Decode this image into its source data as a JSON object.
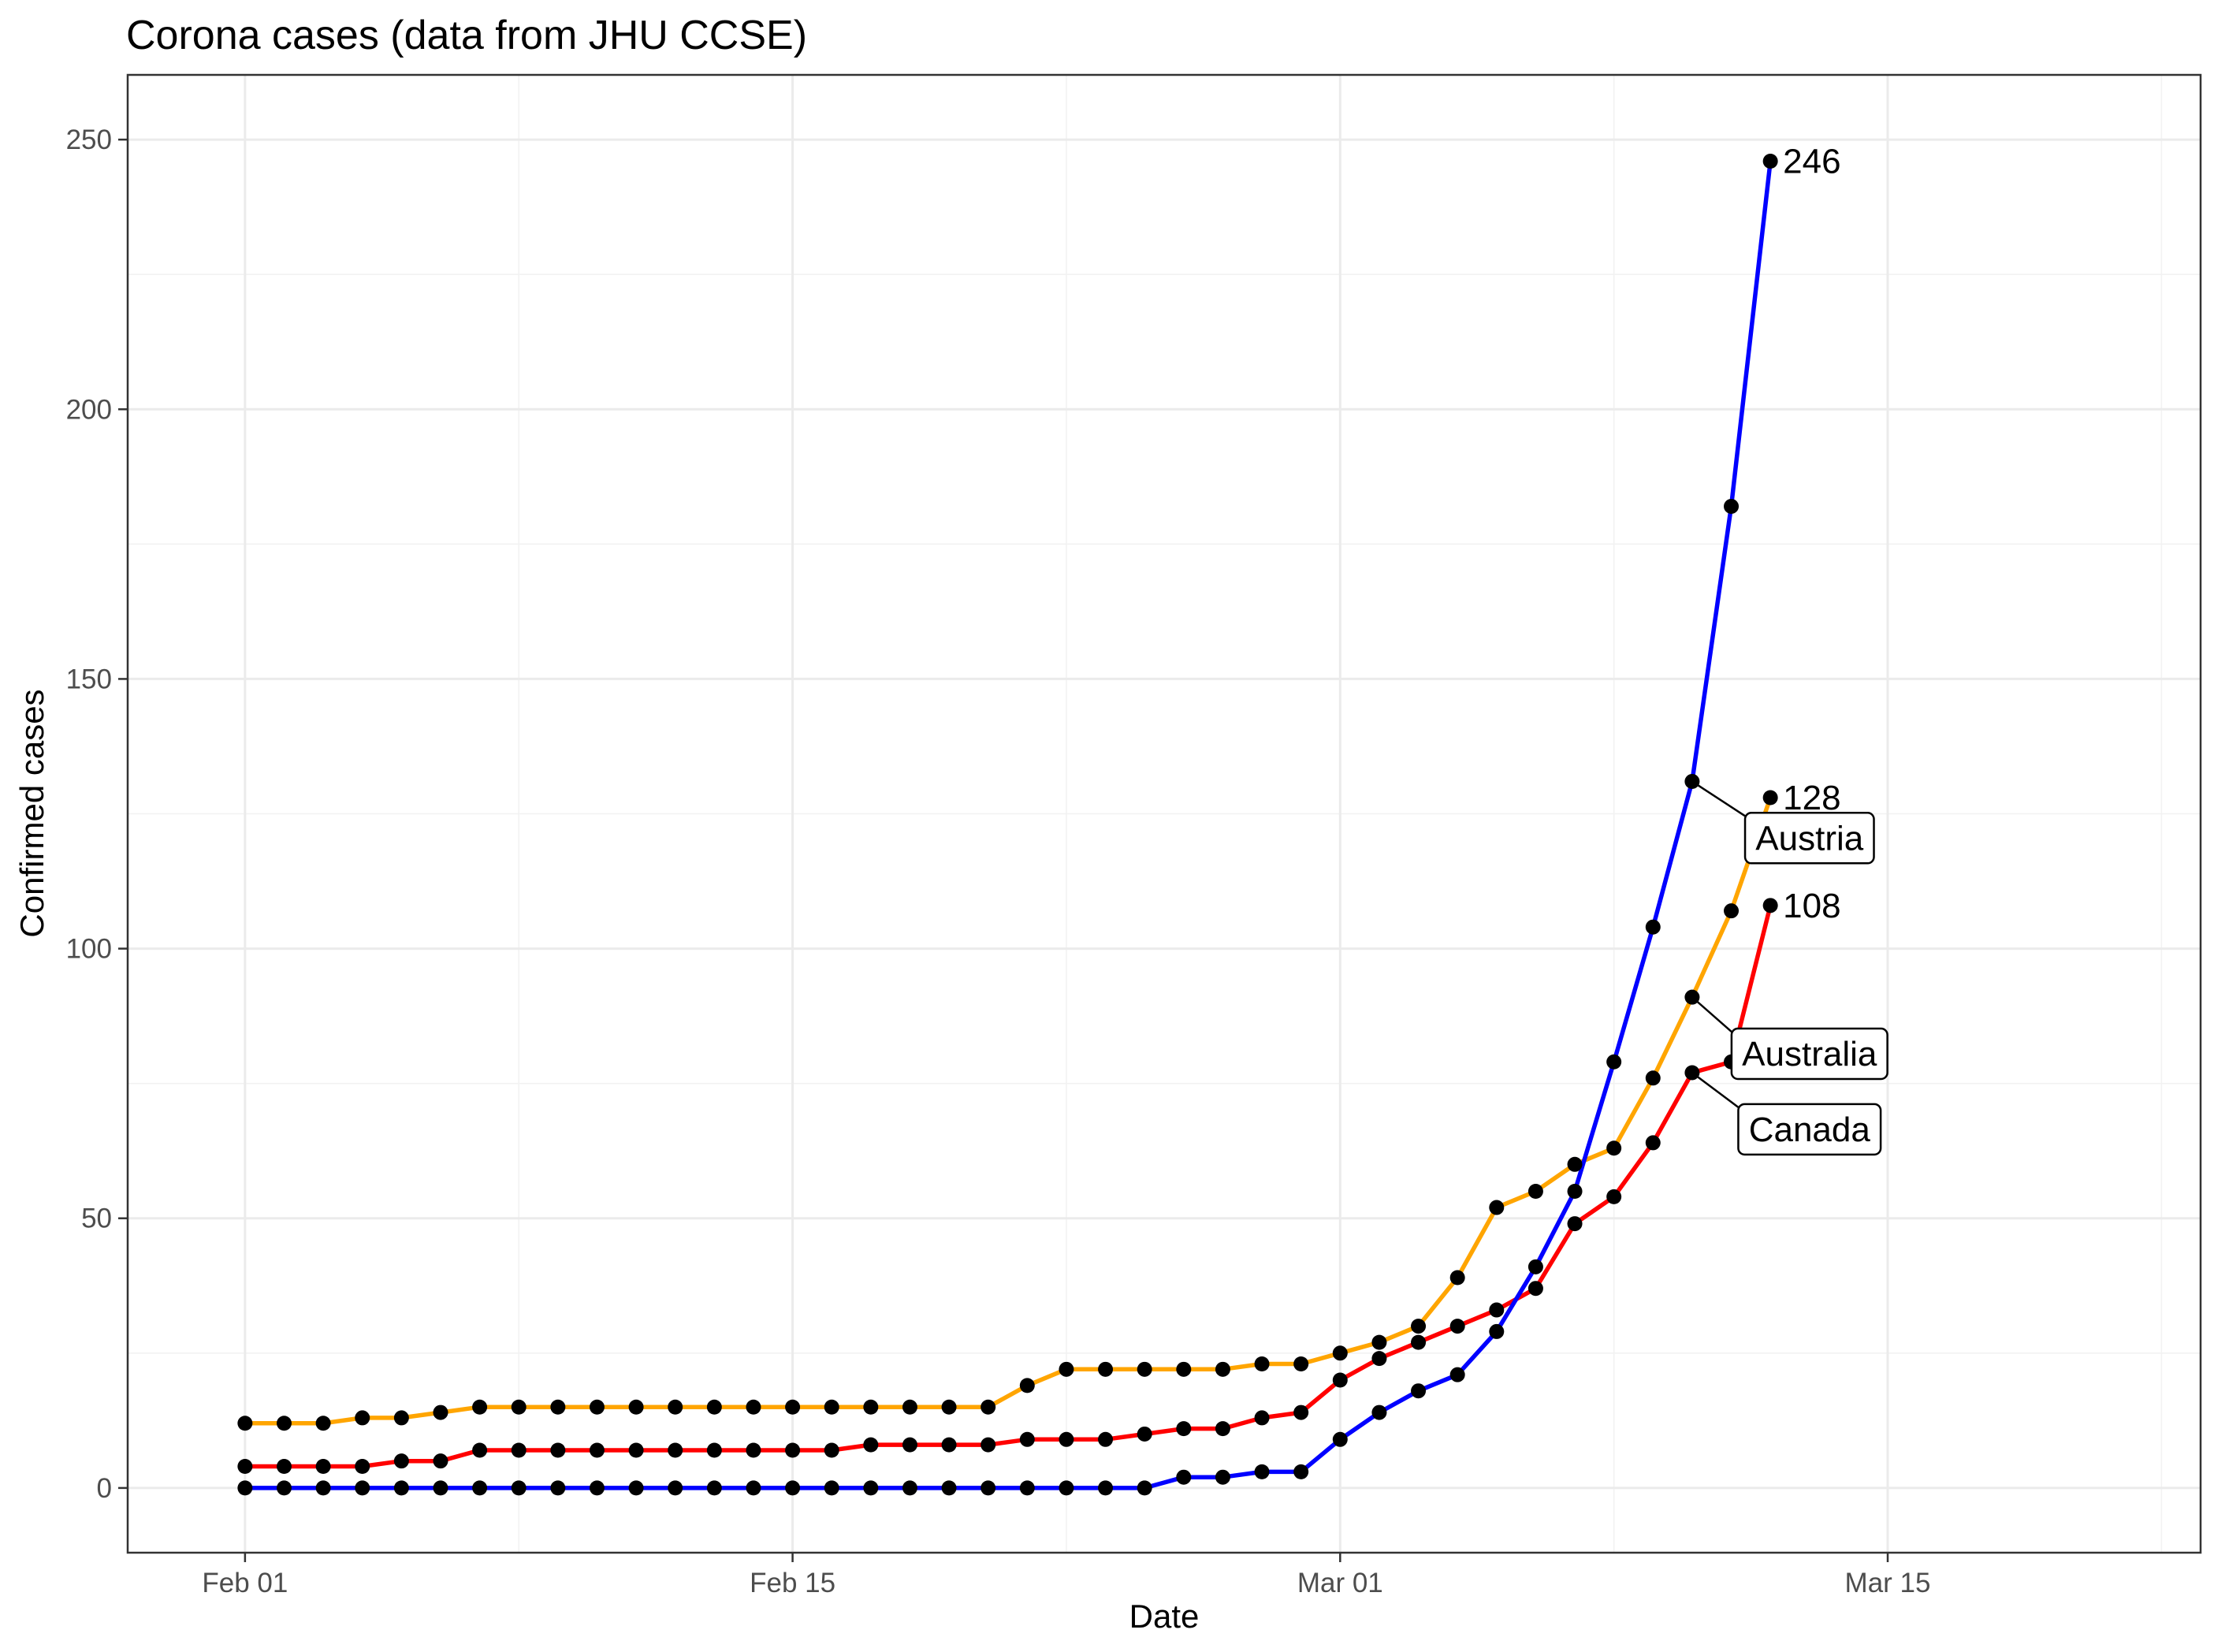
{
  "chart_data": {
    "type": "line",
    "title": "Corona cases (data from JHU CCSE)",
    "xlabel": "Date",
    "ylabel": "Confirmed cases",
    "x_ticks": [
      "Feb 01",
      "Feb 15",
      "Mar 01",
      "Mar 15"
    ],
    "y_ticks": [
      "0",
      "50",
      "100",
      "150",
      "200",
      "250"
    ],
    "xlim": [
      "2020-01-29",
      "2020-03-22"
    ],
    "ylim": [
      -12,
      262
    ],
    "grid": true,
    "x": [
      "2020-02-01",
      "2020-02-02",
      "2020-02-03",
      "2020-02-04",
      "2020-02-05",
      "2020-02-06",
      "2020-02-07",
      "2020-02-08",
      "2020-02-09",
      "2020-02-10",
      "2020-02-11",
      "2020-02-12",
      "2020-02-13",
      "2020-02-14",
      "2020-02-15",
      "2020-02-16",
      "2020-02-17",
      "2020-02-18",
      "2020-02-19",
      "2020-02-20",
      "2020-02-21",
      "2020-02-22",
      "2020-02-23",
      "2020-02-24",
      "2020-02-25",
      "2020-02-26",
      "2020-02-27",
      "2020-02-28",
      "2020-02-29",
      "2020-03-01",
      "2020-03-02",
      "2020-03-03",
      "2020-03-04",
      "2020-03-05",
      "2020-03-06",
      "2020-03-07",
      "2020-03-08",
      "2020-03-09",
      "2020-03-10",
      "2020-03-11"
    ],
    "series": [
      {
        "name": "Australia",
        "color": "#FFA500",
        "values": [
          12,
          12,
          12,
          13,
          13,
          14,
          15,
          15,
          15,
          15,
          15,
          15,
          15,
          15,
          15,
          15,
          15,
          15,
          15,
          15,
          19,
          22,
          22,
          22,
          22,
          22,
          23,
          23,
          25,
          27,
          30,
          39,
          52,
          55,
          60,
          63,
          76,
          91,
          107,
          128
        ],
        "end_label": "128"
      },
      {
        "name": "Canada",
        "color": "#FF0000",
        "values": [
          4,
          4,
          4,
          4,
          5,
          5,
          7,
          7,
          7,
          7,
          7,
          7,
          7,
          7,
          7,
          7,
          8,
          8,
          8,
          8,
          9,
          9,
          9,
          10,
          11,
          11,
          13,
          14,
          20,
          24,
          27,
          30,
          33,
          37,
          49,
          54,
          64,
          77,
          79,
          108
        ],
        "end_label": "108"
      },
      {
        "name": "Austria",
        "color": "#0000FF",
        "values": [
          0,
          0,
          0,
          0,
          0,
          0,
          0,
          0,
          0,
          0,
          0,
          0,
          0,
          0,
          0,
          0,
          0,
          0,
          0,
          0,
          0,
          0,
          0,
          0,
          2,
          2,
          3,
          3,
          9,
          14,
          18,
          21,
          29,
          41,
          55,
          79,
          104,
          131,
          182,
          246
        ],
        "end_label": "246"
      }
    ],
    "labels": [
      {
        "text": "Austria",
        "series": "Austria",
        "anchor_date": "2020-03-09",
        "anchor_value": 131,
        "box_date": "2020-03-12",
        "box_value": 120.5
      },
      {
        "text": "Australia",
        "series": "Australia",
        "anchor_date": "2020-03-09",
        "anchor_value": 91,
        "box_date": "2020-03-12",
        "box_value": 80.5
      },
      {
        "text": "Canada",
        "series": "Canada",
        "anchor_date": "2020-03-09",
        "anchor_value": 77,
        "box_date": "2020-03-12",
        "box_value": 66.5
      }
    ]
  }
}
